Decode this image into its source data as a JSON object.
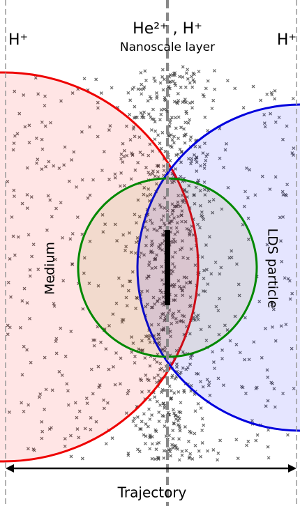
{
  "labels": {
    "left_ion": "H⁺",
    "center_ion": "He²⁺ , H⁺",
    "center_layer": "Nanoscale layer",
    "right_ion": "H⁺",
    "medium": "Medium",
    "particle": "LDS particle",
    "trajectory": "Trajectory"
  }
}
